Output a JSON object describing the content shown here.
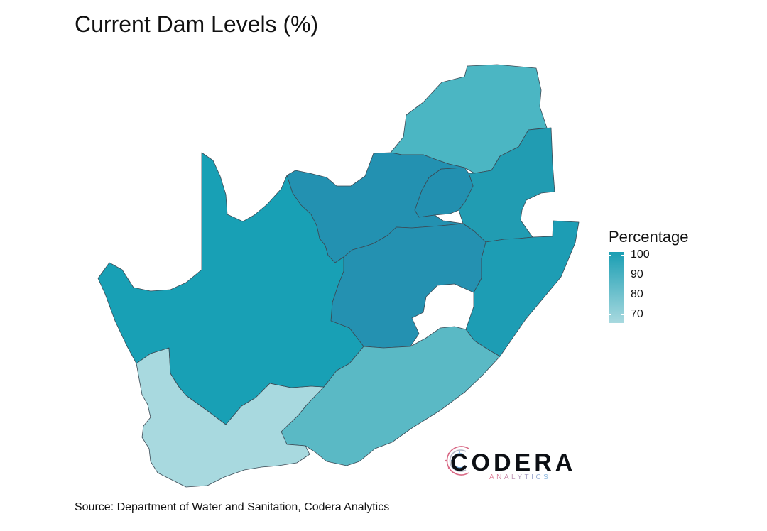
{
  "title": "Current Dam Levels (%)",
  "source": "Source: Department of Water and Sanitation, Codera Analytics",
  "legend": {
    "title": "Percentage",
    "labels": [
      "100",
      "90",
      "80",
      "70"
    ],
    "ticks": [
      100,
      90,
      80,
      70
    ],
    "min": 65.5,
    "max": 101.5,
    "color_low": "#a8d9df",
    "color_high": "#1a9eb3"
  },
  "logo": {
    "word": "CODERA",
    "sub": "ANALYTICS",
    "sub_colors": [
      "#e47b94",
      "#7fb8e3"
    ]
  },
  "chart_data": {
    "type": "map",
    "title": "Current Dam Levels (%)",
    "legend_title": "Percentage",
    "regions": [
      {
        "name": "Limpopo",
        "value": 82.7,
        "color": "#4bb6c3"
      },
      {
        "name": "Mpumalanga",
        "value": 93.5,
        "color": "#219cb2"
      },
      {
        "name": "Gauteng",
        "value": 97.9,
        "color": "#2290b0"
      },
      {
        "name": "North West",
        "value": 98.1,
        "color": "#2391b1"
      },
      {
        "name": "Free State",
        "value": 98.3,
        "color": "#2491b1"
      },
      {
        "name": "KwaZulu-Natal",
        "value": 94.1,
        "color": "#1d9db4"
      },
      {
        "name": "Northern Cape",
        "value": 95.2,
        "color": "#18a0b5"
      },
      {
        "name": "Eastern Cape",
        "value": 79.3,
        "color": "#5ab9c5"
      },
      {
        "name": "Western Cape",
        "value": 66.2,
        "color": "#a8d9df"
      }
    ],
    "scale": {
      "min": 65.5,
      "max": 101.5,
      "ticks": [
        70,
        80,
        90,
        100
      ]
    }
  }
}
